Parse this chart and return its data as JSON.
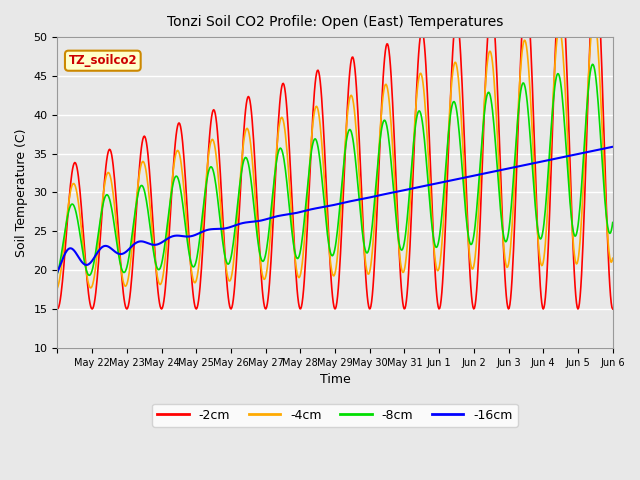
{
  "title": "Tonzi Soil CO2 Profile: Open (East) Temperatures",
  "xlabel": "Time",
  "ylabel": "Soil Temperature (C)",
  "ylim": [
    10,
    50
  ],
  "background_color": "#e0e0e0",
  "plot_bg_color": "#e8e8e8",
  "annotation_label": "TZ_soilco2",
  "annotation_bg": "#ffffcc",
  "annotation_border": "#cc8800",
  "colors": {
    "-2cm": "#ff0000",
    "-4cm": "#ffaa00",
    "-8cm": "#00dd00",
    "-16cm": "#0000ff"
  },
  "tick_labels": [
    "May 22",
    "May 23",
    "May 24",
    "May 25",
    "May 26",
    "May 27",
    "May 28",
    "May 29",
    "May 30",
    "May 31",
    "Jun 1",
    "Jun 2",
    "Jun 3",
    "Jun 4",
    "Jun 5",
    "Jun 6"
  ]
}
